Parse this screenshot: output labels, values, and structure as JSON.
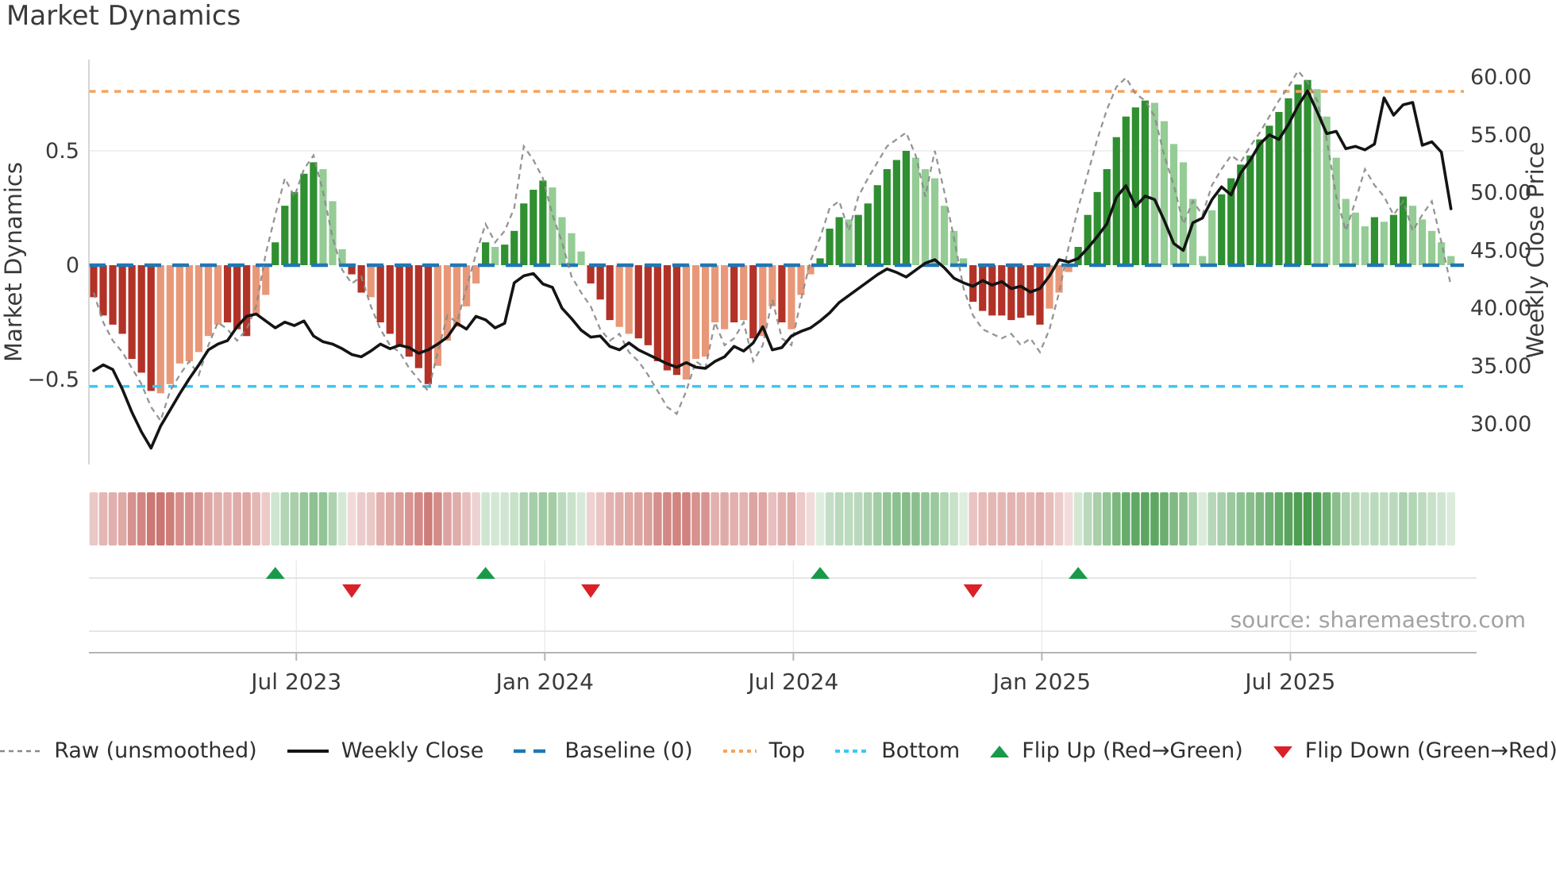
{
  "title": "Market Dynamics",
  "source_note": "source: sharemaestro.com",
  "axes": {
    "left": {
      "label": "Market Dynamics",
      "ticks": [
        "0.5",
        "0",
        "−0.5"
      ]
    },
    "right": {
      "label": "Weekly Close Price",
      "ticks": [
        "60.00",
        "55.00",
        "50.00",
        "45.00",
        "40.00",
        "35.00",
        "30.00"
      ]
    },
    "x": {
      "ticks": [
        "Jul 2023",
        "Jan 2024",
        "Jul 2024",
        "Jan 2025",
        "Jul 2025"
      ]
    }
  },
  "legend": {
    "items": [
      {
        "key": "raw",
        "label": "Raw (unsmoothed)"
      },
      {
        "key": "close",
        "label": "Weekly Close"
      },
      {
        "key": "baseline",
        "label": "Baseline (0)"
      },
      {
        "key": "top",
        "label": "Top"
      },
      {
        "key": "bottom",
        "label": "Bottom"
      },
      {
        "key": "flip_up",
        "label": "Flip Up (Red→Green)"
      },
      {
        "key": "flip_down",
        "label": "Flip Down (Green→Red)"
      }
    ]
  },
  "colors": {
    "bar_dark_red": "#b23227",
    "bar_salmon": "#e89878",
    "bar_dark_green": "#2f8f31",
    "bar_light_green": "#95cc95",
    "baseline": "#1f77b4",
    "top": "#f4a45e",
    "bottom": "#3fc6f0",
    "raw": "#8a8a8a",
    "price": "#141414",
    "flip_up": "#189a4a",
    "flip_down": "#da2127",
    "heat_negative_rgb": "178,50,44",
    "heat_positive_rgb": "56,146,62",
    "text": "#3a3a3a",
    "grid": "#ececec",
    "spine": "#c9c9c9",
    "panel_line": "#dedede",
    "panel_axis": "#b5b5b5"
  },
  "chart_data": {
    "type": "composite",
    "x_unit": "week",
    "n_weeks": 143,
    "x_tick_labels": [
      "Jul 2023",
      "Jan 2024",
      "Jul 2024",
      "Jan 2025",
      "Jul 2025"
    ],
    "x_tick_weeks": [
      21.2,
      47.2,
      73.2,
      99.2,
      125.2
    ],
    "osc_axis": {
      "label": "Market Dynamics",
      "ticks": [
        0.5,
        0,
        -0.5
      ],
      "ylim": [
        -0.9,
        0.95
      ],
      "grid_at": [
        0.5
      ]
    },
    "price_axis": {
      "label": "Weekly Close Price",
      "ticks": [
        60,
        55,
        50,
        45,
        40,
        35,
        30
      ],
      "ylim": [
        26.4,
        61.6
      ]
    },
    "baseline": 0,
    "top_level": 0.76,
    "bottom_level": -0.53,
    "flip_up_weeks": [
      19,
      41,
      76,
      103
    ],
    "flip_down_weeks": [
      27,
      52,
      92
    ],
    "heatmap": {
      "note": "strip mirrors bar values: red = negative, green = positive, intensity proportional to |value|"
    },
    "series": [
      {
        "name": "Dynamics (smoothed bars)",
        "type": "bar",
        "axis": "oscillator",
        "shade_codes": {
          "r": "dark_red_falling",
          "s": "salmon_rising",
          "g": "dark_green_rising",
          "l": "light_green_falling"
        },
        "shades": "rrrrrrrsssssssrrrssggggglllrrsrrrrrrsssssglgggggllllrrrssrrrrrsssssrsrssrsssggglggggggllllllrrrrrrrrsssgggggggglllllllggggggggggllllllglgglllll",
        "values": [
          -0.14,
          -0.22,
          -0.26,
          -0.3,
          -0.41,
          -0.47,
          -0.55,
          -0.56,
          -0.52,
          -0.43,
          -0.42,
          -0.38,
          -0.31,
          -0.26,
          -0.25,
          -0.28,
          -0.31,
          -0.22,
          -0.13,
          0.1,
          0.26,
          0.32,
          0.4,
          0.45,
          0.42,
          0.28,
          0.07,
          -0.04,
          -0.12,
          -0.14,
          -0.25,
          -0.3,
          -0.35,
          -0.4,
          -0.45,
          -0.52,
          -0.44,
          -0.33,
          -0.27,
          -0.18,
          -0.08,
          0.1,
          0.08,
          0.09,
          0.15,
          0.27,
          0.33,
          0.37,
          0.34,
          0.21,
          0.14,
          0.06,
          -0.08,
          -0.15,
          -0.24,
          -0.27,
          -0.3,
          -0.32,
          -0.35,
          -0.42,
          -0.46,
          -0.48,
          -0.5,
          -0.41,
          -0.4,
          -0.25,
          -0.28,
          -0.25,
          -0.24,
          -0.32,
          -0.31,
          -0.18,
          -0.25,
          -0.28,
          -0.13,
          -0.04,
          0.03,
          0.16,
          0.21,
          0.2,
          0.22,
          0.27,
          0.35,
          0.42,
          0.46,
          0.5,
          0.47,
          0.42,
          0.38,
          0.26,
          0.15,
          0.03,
          -0.16,
          -0.2,
          -0.22,
          -0.22,
          -0.24,
          -0.23,
          -0.22,
          -0.26,
          -0.19,
          -0.12,
          -0.03,
          0.08,
          0.22,
          0.32,
          0.42,
          0.56,
          0.65,
          0.69,
          0.72,
          0.71,
          0.63,
          0.53,
          0.45,
          0.29,
          0.04,
          0.24,
          0.31,
          0.38,
          0.44,
          0.48,
          0.55,
          0.61,
          0.67,
          0.73,
          0.79,
          0.81,
          0.77,
          0.65,
          0.47,
          0.29,
          0.23,
          0.17,
          0.21,
          0.19,
          0.22,
          0.3,
          0.26,
          0.2,
          0.15,
          0.1,
          0.04
        ]
      },
      {
        "name": "Raw (unsmoothed)",
        "type": "line",
        "style": "dashed",
        "axis": "oscillator",
        "values": [
          -0.12,
          -0.25,
          -0.33,
          -0.38,
          -0.45,
          -0.52,
          -0.62,
          -0.68,
          -0.55,
          -0.48,
          -0.42,
          -0.48,
          -0.35,
          -0.25,
          -0.28,
          -0.33,
          -0.28,
          -0.18,
          0.05,
          0.22,
          0.38,
          0.3,
          0.42,
          0.48,
          0.32,
          0.12,
          -0.02,
          -0.08,
          -0.05,
          -0.18,
          -0.28,
          -0.35,
          -0.38,
          -0.45,
          -0.5,
          -0.55,
          -0.38,
          -0.22,
          -0.25,
          -0.1,
          0.05,
          0.18,
          0.1,
          0.15,
          0.25,
          0.52,
          0.46,
          0.38,
          0.22,
          0.1,
          -0.05,
          -0.12,
          -0.18,
          -0.28,
          -0.33,
          -0.3,
          -0.38,
          -0.42,
          -0.48,
          -0.55,
          -0.62,
          -0.65,
          -0.55,
          -0.42,
          -0.45,
          -0.25,
          -0.35,
          -0.32,
          -0.25,
          -0.42,
          -0.35,
          -0.15,
          -0.32,
          -0.35,
          -0.15,
          0.02,
          0.12,
          0.25,
          0.28,
          0.15,
          0.3,
          0.38,
          0.45,
          0.52,
          0.55,
          0.58,
          0.48,
          0.3,
          0.5,
          0.32,
          0.12,
          -0.1,
          -0.22,
          -0.28,
          -0.3,
          -0.32,
          -0.3,
          -0.35,
          -0.32,
          -0.38,
          -0.28,
          -0.12,
          0.08,
          0.25,
          0.4,
          0.55,
          0.68,
          0.78,
          0.82,
          0.75,
          0.72,
          0.65,
          0.48,
          0.35,
          0.18,
          0.28,
          0.22,
          0.35,
          0.42,
          0.48,
          0.45,
          0.52,
          0.58,
          0.65,
          0.72,
          0.78,
          0.85,
          0.8,
          0.72,
          0.55,
          0.3,
          0.15,
          0.28,
          0.42,
          0.35,
          0.3,
          0.22,
          0.28,
          0.15,
          0.22,
          0.28,
          0.1,
          -0.09
        ]
      },
      {
        "name": "Weekly Close",
        "type": "line",
        "style": "solid",
        "axis": "price",
        "values": [
          34.6,
          35.1,
          34.7,
          33.0,
          31.0,
          29.3,
          27.9,
          29.8,
          31.2,
          32.6,
          33.9,
          35.1,
          36.4,
          36.9,
          37.2,
          38.4,
          39.3,
          39.5,
          38.9,
          38.3,
          38.8,
          38.5,
          38.9,
          37.6,
          37.1,
          36.9,
          36.5,
          36.0,
          35.8,
          36.3,
          36.9,
          36.5,
          36.8,
          36.6,
          36.1,
          36.4,
          36.9,
          37.5,
          38.7,
          38.2,
          39.3,
          39.0,
          38.3,
          38.7,
          42.2,
          42.8,
          43.0,
          42.1,
          41.8,
          40.0,
          39.1,
          38.1,
          37.5,
          37.6,
          36.7,
          36.4,
          37.0,
          36.4,
          36.0,
          35.6,
          35.2,
          34.9,
          35.3,
          34.9,
          34.8,
          35.4,
          35.8,
          36.7,
          36.3,
          37.0,
          38.4,
          36.4,
          36.6,
          37.6,
          38.0,
          38.3,
          38.9,
          39.6,
          40.5,
          41.1,
          41.7,
          42.3,
          42.9,
          43.4,
          43.1,
          42.7,
          43.3,
          43.9,
          44.2,
          43.5,
          42.6,
          42.2,
          41.9,
          42.4,
          42.0,
          42.3,
          41.7,
          41.9,
          41.4,
          41.7,
          42.8,
          44.2,
          44.0,
          44.3,
          45.2,
          46.2,
          47.3,
          49.6,
          50.6,
          48.8,
          49.7,
          49.4,
          47.6,
          45.6,
          45.0,
          47.4,
          47.8,
          49.4,
          50.5,
          49.8,
          51.7,
          52.8,
          54.2,
          55.0,
          54.6,
          55.9,
          57.5,
          58.8,
          57.0,
          55.1,
          55.3,
          53.8,
          54.0,
          53.7,
          54.2,
          58.2,
          56.7,
          57.6,
          57.8,
          54.1,
          54.4,
          53.5,
          48.6
        ]
      }
    ]
  }
}
